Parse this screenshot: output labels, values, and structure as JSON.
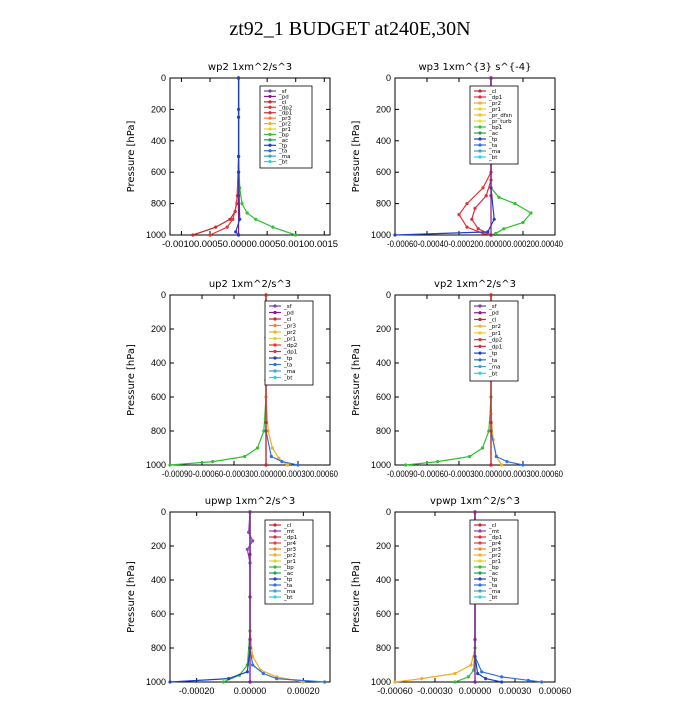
{
  "page_title": "zt92_1  BUDGET at240E,30N",
  "colors": {
    "sf": "#7b3fa0",
    "pd": "#8b1a8b",
    "cl": "#c82828",
    "dp2": "#e83030",
    "dp1": "#d83040",
    "pr3": "#f08030",
    "pr2": "#f0b020",
    "pr1": "#e0d030",
    "bp": "#30c030",
    "ac": "#20a050",
    "tp": "#2040c0",
    "ta": "#3070e0",
    "ma": "#40a0d0",
    "bt": "#30d0e0",
    "mt": "#9040c0",
    "pr4": "#e04040",
    "pr_dfsn": "#f0c020",
    "pr_turb": "#e0e040"
  },
  "chart_data": [
    {
      "type": "line",
      "title": "wp2   1xm^2/s^3",
      "ylabel": "Pressure [hPa]",
      "xlim": [
        -0.0012,
        0.0016
      ],
      "xticks": [
        -0.001,
        -0.0005,
        0,
        0.0005,
        0.001,
        0.0015
      ],
      "xtick_labels": [
        "-0.00100.00050.00000.00050.00100.0015"
      ],
      "xtick_labels_mode": "joined",
      "ylim": [
        1000,
        0
      ],
      "yticks": [
        0,
        200,
        400,
        600,
        800,
        1000
      ],
      "legend": [
        "_sf",
        "_pd",
        "_cl",
        "_dp2",
        "_dp1",
        "_pr3",
        "_pr2",
        "_pr1",
        "_bp",
        "_ac",
        "_tp",
        "_ta",
        "_ma",
        "_bt"
      ],
      "series": [
        {
          "key": "bp",
          "x": [
            0,
            0,
            0,
            2e-05,
            6e-05,
            0.00015,
            0.0003,
            0.0006,
            0.001
          ],
          "y": [
            0,
            200,
            500,
            700,
            800,
            860,
            900,
            950,
            1000
          ]
        },
        {
          "key": "cl",
          "x": [
            0,
            0,
            0,
            -2e-05,
            -6e-05,
            -0.00015,
            -0.0004,
            -0.0008
          ],
          "y": [
            0,
            200,
            600,
            750,
            850,
            900,
            950,
            1000
          ]
        },
        {
          "key": "dp2",
          "x": [
            0,
            0,
            -3e-05,
            -0.0001,
            -0.0002,
            -0.0005
          ],
          "y": [
            0,
            500,
            800,
            900,
            950,
            1000
          ]
        },
        {
          "key": "pd",
          "x": [
            0,
            0,
            0,
            0,
            0
          ],
          "y": [
            0,
            250,
            500,
            750,
            1000
          ]
        },
        {
          "key": "tp",
          "x": [
            0,
            0,
            2e-05,
            -5e-05,
            0
          ],
          "y": [
            0,
            600,
            900,
            980,
            1000
          ]
        }
      ]
    },
    {
      "type": "line",
      "title": "wp3   1xm^{3} s^{-4}",
      "ylabel": "Pressure [hPa]",
      "xlim": [
        -0.0006,
        0.0004
      ],
      "xticks": [
        -0.0006,
        -0.0004,
        -0.0002,
        0,
        0.0002,
        0.0004
      ],
      "xtick_labels": [
        "-0.00060-0.00040-0.000200.000000.000200.00040"
      ],
      "xtick_labels_mode": "joined",
      "ylim": [
        1000,
        0
      ],
      "yticks": [
        0,
        200,
        400,
        600,
        800,
        1000
      ],
      "legend": [
        "_cl",
        "_dp1",
        "_pr2",
        "_pr1",
        "_pr_dfsn",
        "_pr_turb",
        "_bp1",
        "_ac",
        "_tp",
        "_ta",
        "_ma",
        "_bt"
      ],
      "series": [
        {
          "key": "bp",
          "x": [
            0,
            0,
            0,
            5e-05,
            0.00015,
            0.00025,
            0.0002,
            8e-05,
            3e-05,
            0
          ],
          "y": [
            0,
            500,
            700,
            760,
            800,
            860,
            920,
            960,
            990,
            1000
          ]
        },
        {
          "key": "dp2",
          "x": [
            0,
            0,
            -5e-05,
            -0.00015,
            -0.0002,
            -0.00015,
            -5e-05,
            0
          ],
          "y": [
            0,
            600,
            700,
            800,
            870,
            950,
            990,
            1000
          ]
        },
        {
          "key": "dp1",
          "x": [
            0,
            0,
            -3e-05,
            -0.0001,
            -0.00012,
            -8e-05,
            0
          ],
          "y": [
            0,
            650,
            750,
            830,
            900,
            960,
            1000
          ]
        },
        {
          "key": "tp",
          "x": [
            0,
            0,
            2e-05,
            -2e-05,
            -0.0006
          ],
          "y": [
            0,
            700,
            900,
            980,
            1000
          ]
        },
        {
          "key": "pd",
          "x": [
            0,
            0,
            0,
            0,
            0
          ],
          "y": [
            0,
            250,
            500,
            750,
            1000
          ]
        }
      ]
    },
    {
      "type": "line",
      "title": "up2   1xm^2/s^3",
      "ylabel": "Pressure [hPa]",
      "xlim": [
        -0.0009,
        0.0006
      ],
      "xticks": [
        -0.0009,
        -0.0006,
        -0.0003,
        0,
        0.0003,
        0.0006
      ],
      "xtick_labels": [
        "-0.00090-0.00060-0.000300.000000.000300.00060"
      ],
      "xtick_labels_mode": "joined",
      "ylim": [
        1000,
        0
      ],
      "yticks": [
        0,
        200,
        400,
        600,
        800,
        1000
      ],
      "legend": [
        "_sf",
        "_pd",
        "_cl",
        "_pr3",
        "_pr2",
        "_pr1",
        "_dp2",
        "_dp1",
        "_tp",
        "_ta",
        "_ma",
        "_bt"
      ],
      "series": [
        {
          "key": "bp",
          "x": [
            0,
            0,
            -2e-05,
            -8e-05,
            -0.0002,
            -0.0005,
            -0.0009
          ],
          "y": [
            0,
            600,
            800,
            900,
            950,
            980,
            1000
          ]
        },
        {
          "key": "pr2",
          "x": [
            0,
            0,
            2e-05,
            6e-05,
            0.00012,
            0.0002
          ],
          "y": [
            0,
            600,
            800,
            900,
            960,
            1000
          ]
        },
        {
          "key": "ta",
          "x": [
            0,
            0,
            5e-05,
            0.00015,
            0.0003
          ],
          "y": [
            0,
            800,
            950,
            980,
            1000
          ]
        },
        {
          "key": "pd",
          "x": [
            0,
            0,
            0,
            0,
            0
          ],
          "y": [
            0,
            250,
            500,
            750,
            1000
          ]
        },
        {
          "key": "cl",
          "x": [
            0,
            0,
            0,
            0,
            0
          ],
          "y": [
            0,
            250,
            500,
            750,
            1000
          ]
        }
      ]
    },
    {
      "type": "line",
      "title": "vp2   1xm^2/s^3",
      "ylabel": "Pressure [hPa]",
      "xlim": [
        -0.0009,
        0.0006
      ],
      "xticks": [
        -0.0009,
        -0.0006,
        -0.0003,
        0,
        0.0003,
        0.0006
      ],
      "xtick_labels": [
        "-0.00090-0.00060-0.000300.000000.000300.00060"
      ],
      "xtick_labels_mode": "joined",
      "ylim": [
        1000,
        0
      ],
      "yticks": [
        0,
        200,
        400,
        600,
        800,
        1000
      ],
      "legend": [
        "_sf",
        "_pd",
        "_cl",
        "_pr2",
        "_pr1",
        "_dp2",
        "_dp1",
        "_tp",
        "_ta",
        "_ma",
        "_bt"
      ],
      "series": [
        {
          "key": "bp",
          "x": [
            0,
            0,
            -2e-05,
            -8e-05,
            -0.0002,
            -0.0005,
            -0.0008
          ],
          "y": [
            0,
            600,
            800,
            900,
            950,
            980,
            1000
          ]
        },
        {
          "key": "pr2",
          "x": [
            0,
            0,
            2e-05,
            5e-05,
            0.0001
          ],
          "y": [
            0,
            700,
            850,
            950,
            1000
          ]
        },
        {
          "key": "ta",
          "x": [
            0,
            0,
            5e-05,
            0.00015,
            0.0003
          ],
          "y": [
            0,
            800,
            950,
            980,
            1000
          ]
        },
        {
          "key": "pd",
          "x": [
            0,
            0,
            0,
            0,
            0
          ],
          "y": [
            0,
            250,
            500,
            750,
            1000
          ]
        },
        {
          "key": "cl",
          "x": [
            0,
            0,
            0,
            0,
            0
          ],
          "y": [
            0,
            250,
            500,
            750,
            1000
          ]
        }
      ]
    },
    {
      "type": "line",
      "title": "upwp   1xm^2/s^3",
      "ylabel": "Pressure [hPa]",
      "xlim": [
        -0.0003,
        0.0003
      ],
      "xticks": [
        -0.0002,
        0,
        0.0002
      ],
      "xtick_labels": [
        "-0.00020",
        "0.00000",
        "0.00020"
      ],
      "xtick_labels_mode": "separate",
      "ylim": [
        1000,
        0
      ],
      "yticks": [
        0,
        200,
        400,
        600,
        800,
        1000
      ],
      "legend": [
        "_cl",
        "_mt",
        "_dp1",
        "_pr4",
        "_pr3",
        "_pr2",
        "_pr1",
        "_bp",
        "_ac",
        "_tp",
        "_ta",
        "_ma",
        "_bt"
      ],
      "series": [
        {
          "key": "pr2",
          "x": [
            0,
            0,
            1e-05,
            4e-05,
            0.0001,
            0.0002
          ],
          "y": [
            0,
            700,
            850,
            930,
            970,
            1000
          ]
        },
        {
          "key": "bp",
          "x": [
            0,
            0,
            -1e-05,
            -4e-05,
            -0.0001
          ],
          "y": [
            0,
            700,
            900,
            960,
            1000
          ]
        },
        {
          "key": "ta",
          "x": [
            0,
            0,
            1e-05,
            5e-05,
            0.0001,
            0.00028
          ],
          "y": [
            0,
            800,
            900,
            950,
            980,
            1000
          ]
        },
        {
          "key": "tp",
          "x": [
            0,
            0,
            -1e-05,
            -8e-05,
            -0.0003
          ],
          "y": [
            0,
            800,
            940,
            980,
            1000
          ]
        },
        {
          "key": "mt",
          "x": [
            0,
            -5e-06,
            1e-05,
            -1e-05,
            0,
            0
          ],
          "y": [
            0,
            120,
            170,
            220,
            300,
            1000
          ]
        },
        {
          "key": "pd",
          "x": [
            0,
            0,
            0,
            0,
            0
          ],
          "y": [
            0,
            250,
            500,
            750,
            1000
          ]
        }
      ]
    },
    {
      "type": "line",
      "title": "vpwp   1xm^2/s^3",
      "ylabel": "Pressure [hPa]",
      "xlim": [
        -0.0006,
        0.0006
      ],
      "xticks": [
        -0.0006,
        -0.0003,
        0,
        0.0003,
        0.0006
      ],
      "xtick_labels": [
        "-0.00060",
        "-0.00030",
        "0.00000",
        "0.00030",
        "0.00060"
      ],
      "xtick_labels_mode": "separate",
      "ylim": [
        1000,
        0
      ],
      "yticks": [
        0,
        200,
        400,
        600,
        800,
        1000
      ],
      "legend": [
        "_cl",
        "_mt",
        "_dp1",
        "_pr4",
        "_pr3",
        "_pr2",
        "_pr1",
        "_bp",
        "_ac",
        "_tp",
        "_ta",
        "_ma",
        "_bt"
      ],
      "series": [
        {
          "key": "pr2",
          "x": [
            0,
            0,
            -3e-05,
            -0.00015,
            -0.0004,
            -0.0006
          ],
          "y": [
            0,
            800,
            900,
            950,
            980,
            1000
          ]
        },
        {
          "key": "bp",
          "x": [
            0,
            0,
            -1e-05,
            -5e-05,
            -0.00015
          ],
          "y": [
            0,
            800,
            930,
            970,
            1000
          ]
        },
        {
          "key": "ta",
          "x": [
            0,
            0,
            5e-05,
            0.0002,
            0.0004,
            0.0005
          ],
          "y": [
            0,
            850,
            940,
            970,
            990,
            1000
          ]
        },
        {
          "key": "tp",
          "x": [
            0,
            0,
            2e-05,
            8e-05,
            0.0002
          ],
          "y": [
            0,
            850,
            950,
            980,
            1000
          ]
        },
        {
          "key": "mt",
          "x": [
            0,
            -5e-06,
            1e-05,
            0,
            0
          ],
          "y": [
            0,
            150,
            220,
            300,
            1000
          ]
        },
        {
          "key": "pd",
          "x": [
            0,
            0,
            0,
            0,
            0
          ],
          "y": [
            0,
            250,
            500,
            750,
            1000
          ]
        }
      ]
    }
  ]
}
